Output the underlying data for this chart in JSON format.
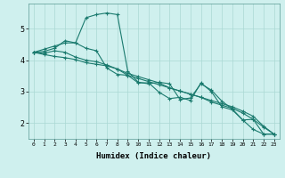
{
  "xlabel": "Humidex (Indice chaleur)",
  "bg_color": "#cff0ee",
  "grid_color": "#aad8d4",
  "line_color": "#1a7a6e",
  "xlim": [
    -0.5,
    23.5
  ],
  "ylim": [
    1.5,
    5.8
  ],
  "yticks": [
    2,
    3,
    4,
    5
  ],
  "xticks": [
    0,
    1,
    2,
    3,
    4,
    5,
    6,
    7,
    8,
    9,
    10,
    11,
    12,
    13,
    14,
    15,
    16,
    17,
    18,
    19,
    20,
    21,
    22,
    23
  ],
  "line1_x": [
    0,
    1,
    2,
    3,
    4,
    5,
    6,
    7,
    8,
    9,
    10,
    11,
    12,
    13,
    14,
    15,
    16,
    17,
    18,
    19,
    20,
    21,
    22,
    23
  ],
  "line1_y": [
    4.25,
    4.35,
    4.45,
    4.55,
    4.55,
    5.35,
    5.45,
    5.5,
    5.45,
    3.65,
    3.3,
    3.25,
    3.3,
    3.25,
    2.75,
    2.8,
    3.25,
    3.05,
    2.7,
    2.45,
    2.1,
    1.8,
    1.65,
    1.65
  ],
  "line2_x": [
    0,
    1,
    2,
    3,
    4,
    5,
    6,
    7,
    8,
    9,
    10,
    11,
    12,
    13,
    14,
    15,
    16,
    17,
    18,
    19,
    20,
    21,
    22,
    23
  ],
  "line2_y": [
    4.25,
    4.28,
    4.38,
    4.62,
    4.55,
    4.38,
    4.3,
    3.75,
    3.55,
    3.52,
    3.28,
    3.28,
    2.98,
    2.78,
    2.82,
    2.72,
    3.28,
    3.0,
    2.52,
    2.42,
    2.1,
    2.12,
    1.65,
    1.65
  ],
  "line3_x": [
    0,
    1,
    2,
    3,
    4,
    5,
    6,
    7,
    8,
    9,
    10,
    11,
    12,
    13,
    14,
    15,
    16,
    17,
    18,
    19,
    20,
    21,
    22,
    23
  ],
  "line3_y": [
    4.25,
    4.22,
    4.3,
    4.25,
    4.1,
    4.0,
    3.95,
    3.85,
    3.72,
    3.58,
    3.48,
    3.38,
    3.28,
    3.12,
    3.02,
    2.92,
    2.82,
    2.72,
    2.62,
    2.52,
    2.38,
    2.22,
    1.9,
    1.65
  ],
  "line4_x": [
    0,
    1,
    2,
    3,
    4,
    5,
    6,
    7,
    8,
    9,
    10,
    11,
    12,
    13,
    14,
    15,
    16,
    17,
    18,
    19,
    20,
    21,
    22,
    23
  ],
  "line4_y": [
    4.25,
    4.18,
    4.12,
    4.08,
    4.02,
    3.92,
    3.87,
    3.82,
    3.72,
    3.52,
    3.42,
    3.32,
    3.22,
    3.12,
    3.02,
    2.92,
    2.82,
    2.67,
    2.57,
    2.47,
    2.32,
    2.12,
    1.87,
    1.65
  ]
}
